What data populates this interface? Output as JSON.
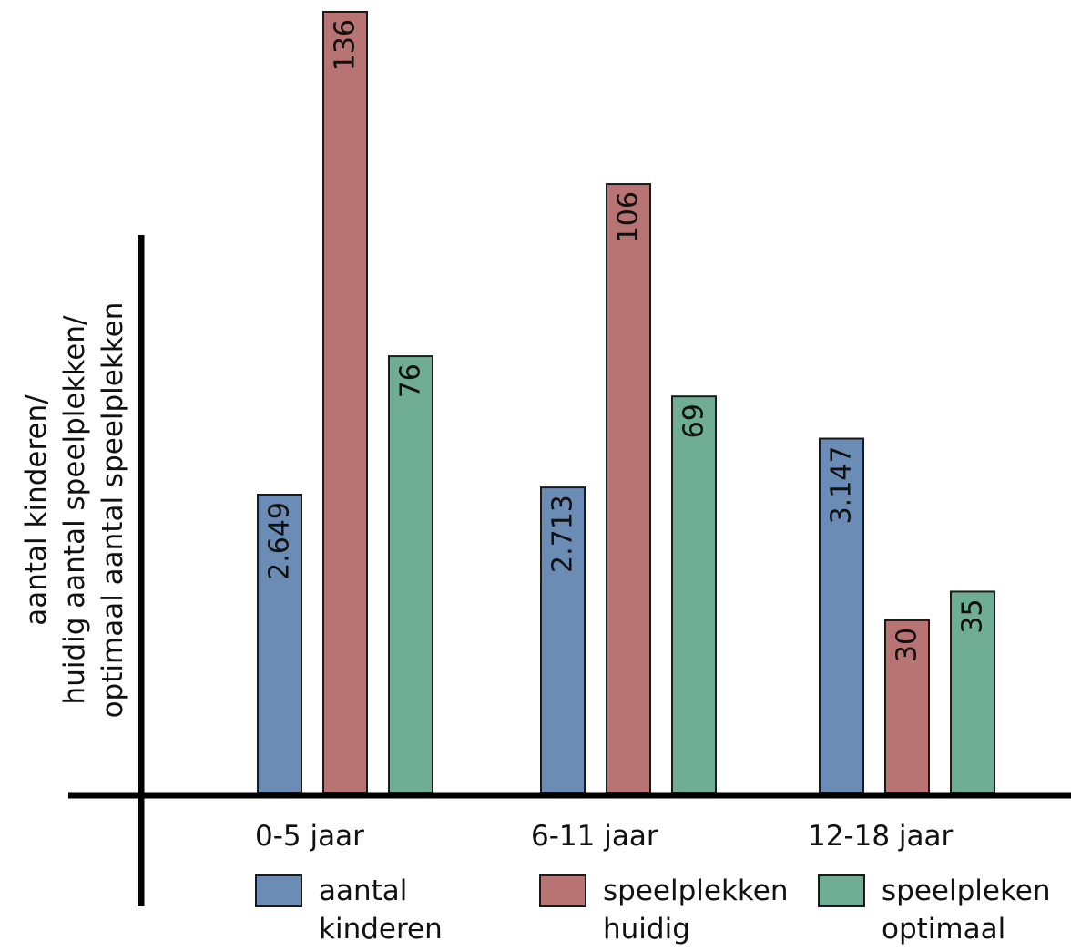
{
  "chart_data": {
    "type": "bar",
    "categories": [
      "0-5 jaar",
      "6-11 jaar",
      "12-18 jaar"
    ],
    "series": [
      {
        "name": "aantal kinderen",
        "values": [
          2649,
          2713,
          3147
        ],
        "labels": [
          "2.649",
          "2.713",
          "3.147"
        ],
        "color": "#6b8db5"
      },
      {
        "name": "speelplekken huidig",
        "values": [
          136,
          106,
          30
        ],
        "labels": [
          "136",
          "106",
          "30"
        ],
        "color": "#b87373"
      },
      {
        "name": "speelpleken optimaal",
        "values": [
          76,
          69,
          35
        ],
        "labels": [
          "76",
          "69",
          "35"
        ],
        "color": "#6fae94"
      }
    ],
    "ylabel_lines": [
      "aantal kinderen/",
      "huidig aantal speelplekken/",
      "optimaal aantal speelplekken"
    ],
    "legend": [
      {
        "lines": [
          "aantal",
          "kinderen"
        ],
        "color": "#6b8db5"
      },
      {
        "lines": [
          "speelplekken",
          "huidig"
        ],
        "color": "#b87373"
      },
      {
        "lines": [
          "speelpleken",
          "optimaal"
        ],
        "color": "#6fae94"
      }
    ],
    "legend_position": "bottom",
    "grid": false
  }
}
